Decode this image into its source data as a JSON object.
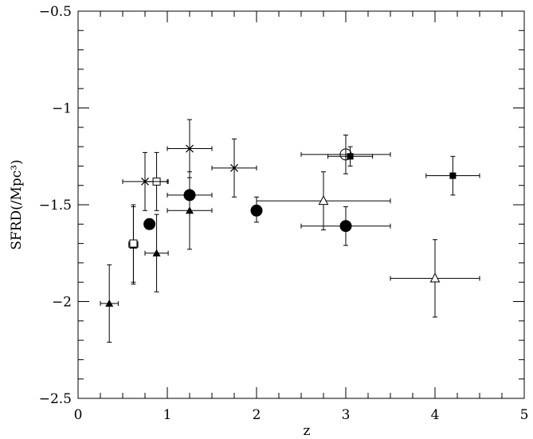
{
  "chart_data": {
    "type": "scatter",
    "xlabel": "z",
    "ylabel": "SFRD(/Mpc³)",
    "xlim": [
      0,
      5
    ],
    "ylim": [
      -2.5,
      -0.5
    ],
    "xticks": [
      "0",
      "1",
      "2",
      "3",
      "4",
      "5"
    ],
    "xtick_values": [
      0,
      1,
      2,
      3,
      4,
      5
    ],
    "yticks": [
      "−2.5",
      "−2",
      "−1.5",
      "−1",
      "−0.5"
    ],
    "ytick_values": [
      -2.5,
      -2,
      -1.5,
      -1,
      -0.5
    ],
    "grid": false,
    "series": [
      {
        "marker": "filled-circle",
        "points": [
          {
            "x": 0.8,
            "y": -1.6,
            "xerr": [
              0,
              0
            ],
            "yerr": [
              0,
              0
            ]
          },
          {
            "x": 1.25,
            "y": -1.45,
            "xerr": [
              0.25,
              0.25
            ],
            "yerr": [
              0,
              0
            ]
          },
          {
            "x": 2.0,
            "y": -1.53,
            "xerr": [
              0,
              0
            ],
            "yerr": [
              0.06,
              0.07
            ]
          },
          {
            "x": 3.0,
            "y": -1.61,
            "xerr": [
              0.5,
              0.5
            ],
            "yerr": [
              0.1,
              0.1
            ]
          }
        ]
      },
      {
        "marker": "filled-triangle",
        "points": [
          {
            "x": 0.35,
            "y": -2.01,
            "xerr": [
              0.1,
              0.1
            ],
            "yerr": [
              0.2,
              0.2
            ]
          },
          {
            "x": 0.62,
            "y": -1.71,
            "xerr": [
              0.05,
              0.05
            ],
            "yerr": [
              0.2,
              0.2
            ]
          },
          {
            "x": 0.88,
            "y": -1.75,
            "xerr": [
              0.13,
              0.13
            ],
            "yerr": [
              0.2,
              0.2
            ]
          },
          {
            "x": 1.25,
            "y": -1.53,
            "xerr": [
              0.25,
              0.25
            ],
            "yerr": [
              0.2,
              0.2
            ]
          }
        ]
      },
      {
        "marker": "open-square",
        "points": [
          {
            "x": 0.62,
            "y": -1.7,
            "xerr": [
              0.05,
              0.05
            ],
            "yerr": [
              0.2,
              0.2
            ]
          },
          {
            "x": 0.88,
            "y": -1.38,
            "xerr": [
              0.13,
              0.13
            ],
            "yerr": [
              0.15,
              0.15
            ]
          }
        ]
      },
      {
        "marker": "cross",
        "points": [
          {
            "x": 0.75,
            "y": -1.38,
            "xerr": [
              0.25,
              0.25
            ],
            "yerr": [
              0.15,
              0.15
            ]
          },
          {
            "x": 1.25,
            "y": -1.21,
            "xerr": [
              0.25,
              0.25
            ],
            "yerr": [
              0.15,
              0.15
            ]
          },
          {
            "x": 1.75,
            "y": -1.31,
            "xerr": [
              0.25,
              0.25
            ],
            "yerr": [
              0.15,
              0.15
            ]
          }
        ]
      },
      {
        "marker": "open-triangle",
        "points": [
          {
            "x": 2.75,
            "y": -1.48,
            "xerr": [
              0.75,
              0.75
            ],
            "yerr": [
              0.15,
              0.15
            ]
          },
          {
            "x": 4.0,
            "y": -1.88,
            "xerr": [
              0.5,
              0.5
            ],
            "yerr": [
              0.2,
              0.2
            ]
          }
        ]
      },
      {
        "marker": "open-circle",
        "points": [
          {
            "x": 3.0,
            "y": -1.24,
            "xerr": [
              0.5,
              0.5
            ],
            "yerr": [
              0.1,
              0.1
            ]
          }
        ]
      },
      {
        "marker": "filled-square",
        "points": [
          {
            "x": 3.05,
            "y": -1.25,
            "xerr": [
              0.25,
              0.25
            ],
            "yerr": [
              0.05,
              0.05
            ]
          },
          {
            "x": 4.2,
            "y": -1.35,
            "xerr": [
              0.3,
              0.3
            ],
            "yerr": [
              0.1,
              0.1
            ]
          }
        ]
      }
    ]
  }
}
